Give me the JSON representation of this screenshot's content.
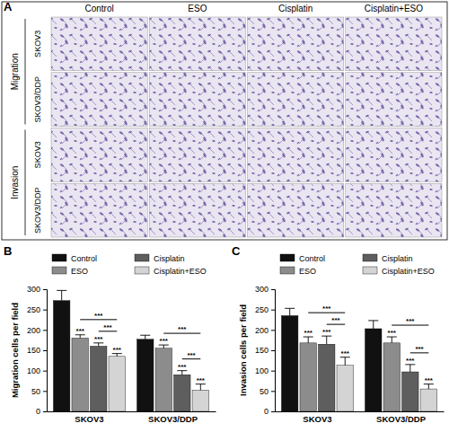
{
  "panel_a": {
    "label": "A",
    "columns": [
      "Control",
      "ESO",
      "Cisplatin",
      "Cisplatin+ESO"
    ],
    "groups": [
      {
        "label": "Migration",
        "rows": [
          "SKOV3",
          "SKOV3/DDP"
        ]
      },
      {
        "label": "Invasion",
        "rows": [
          "SKOV3",
          "SKOV3/DDP"
        ]
      }
    ]
  },
  "chart_data": [
    {
      "type": "bar",
      "panel_label": "B",
      "y_label": "Migration cells per field",
      "categories": [
        "SKOV3",
        "SKOV3/DDP"
      ],
      "series": [
        {
          "name": "Control",
          "color": "#111111",
          "values": [
            272,
            177
          ],
          "errors": [
            25,
            10
          ]
        },
        {
          "name": "ESO",
          "color": "#8c8c8c",
          "values": [
            180,
            155
          ],
          "errors": [
            8,
            8
          ],
          "significance": [
            "***",
            "***"
          ]
        },
        {
          "name": "Cisplatin",
          "color": "#5e5e5e",
          "values": [
            160,
            90
          ],
          "errors": [
            8,
            10
          ],
          "significance": [
            "***",
            "***"
          ]
        },
        {
          "name": "Cisplatin+ESO",
          "color": "#d4d4d4",
          "values": [
            135,
            52
          ],
          "errors": [
            7,
            15
          ],
          "significance": [
            "***",
            "***"
          ]
        }
      ],
      "comparisons": [
        {
          "category": 0,
          "from": 2,
          "to": 3,
          "label": "***"
        },
        {
          "category": 0,
          "from": 1,
          "to": 3,
          "label": "***"
        },
        {
          "category": 1,
          "from": 2,
          "to": 3,
          "label": "***"
        },
        {
          "category": 1,
          "from": 1,
          "to": 3,
          "label": "***"
        }
      ],
      "ylim": [
        0,
        300
      ],
      "yticks": [
        0,
        50,
        100,
        150,
        200,
        250,
        300
      ],
      "legend": "top"
    },
    {
      "type": "bar",
      "panel_label": "C",
      "y_label": "Invasion cells per field",
      "categories": [
        "SKOV3",
        "SKOV3/DDP"
      ],
      "series": [
        {
          "name": "Control",
          "color": "#111111",
          "values": [
            235,
            203
          ],
          "errors": [
            18,
            20
          ]
        },
        {
          "name": "ESO",
          "color": "#8c8c8c",
          "values": [
            168,
            168
          ],
          "errors": [
            15,
            15
          ],
          "significance": [
            "***",
            "***"
          ]
        },
        {
          "name": "Cisplatin",
          "color": "#5e5e5e",
          "values": [
            165,
            97
          ],
          "errors": [
            20,
            18
          ],
          "significance": [
            "***",
            "***"
          ]
        },
        {
          "name": "Cisplatin+ESO",
          "color": "#d4d4d4",
          "values": [
            113,
            55
          ],
          "errors": [
            20,
            12
          ],
          "significance": [
            "***",
            "***"
          ]
        }
      ],
      "comparisons": [
        {
          "category": 0,
          "from": 2,
          "to": 3,
          "label": "***"
        },
        {
          "category": 0,
          "from": 1,
          "to": 3,
          "label": "***"
        },
        {
          "category": 1,
          "from": 2,
          "to": 3,
          "label": "***"
        },
        {
          "category": 1,
          "from": 1,
          "to": 3,
          "label": "***"
        }
      ],
      "ylim": [
        0,
        300
      ],
      "yticks": [
        0,
        50,
        100,
        150,
        200,
        250,
        300
      ],
      "legend": "top"
    }
  ]
}
